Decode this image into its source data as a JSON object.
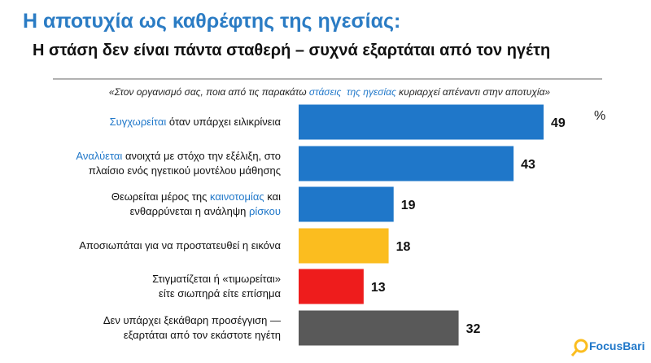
{
  "chart_data": {
    "type": "bar",
    "orientation": "horizontal",
    "title": "Η αποτυχία ως καθρέφτης της ηγεσίας:",
    "subtitle": "Η στάση δεν είναι πάντα σταθερή – συχνά εξαρτάται από τον ηγέτη",
    "question": [
      {
        "text": "«Στον οργανισμό σας, ποια από τις παρακάτω "
      },
      {
        "text": "στάσεις  της ηγεσίας",
        "color": "#1f77c9"
      },
      {
        "text": " κυριαρχεί απέναντι στην αποτυχία»"
      }
    ],
    "unit_label": "%",
    "categories": [
      [
        [
          {
            "text": "Συγχωρείται",
            "color": "#1f77c9"
          },
          {
            "text": " όταν υπάρχει ειλικρίνεια"
          }
        ]
      ],
      [
        [
          {
            "text": "Αναλύεται",
            "color": "#1f77c9"
          },
          {
            "text": " ανοιχτά με στόχο την εξέλιξη, στο"
          }
        ],
        [
          {
            "text": "πλαίσιο ενός ηγετικού μοντέλου μάθησης"
          }
        ]
      ],
      [
        [
          {
            "text": "Θεωρείται μέρος της "
          },
          {
            "text": "καινοτομίας",
            "color": "#1f77c9"
          },
          {
            "text": " και"
          }
        ],
        [
          {
            "text": "ενθαρρύνεται η ανάληψη "
          },
          {
            "text": "ρίσκου",
            "color": "#1f77c9"
          }
        ]
      ],
      [
        [
          {
            "text": "Αποσιωπάται για να προστατευθεί η εικόνα"
          }
        ]
      ],
      [
        [
          {
            "text": "Στιγματίζεται ή «τιμωρείται»"
          }
        ],
        [
          {
            "text": "είτε σιωπηρά είτε επίσημα"
          }
        ]
      ],
      [
        [
          {
            "text": "Δεν υπάρχει ξεκάθαρη προσέγγιση —"
          }
        ],
        [
          {
            "text": "εξαρτάται από τον εκάστοτε ηγέτη"
          }
        ]
      ]
    ],
    "values": [
      49,
      43,
      19,
      18,
      13,
      32
    ],
    "colors": [
      "#1f77c9",
      "#1f77c9",
      "#1f77c9",
      "#fbbd1f",
      "#ee1c1c",
      "#595959"
    ],
    "logo": "FocusBari"
  }
}
